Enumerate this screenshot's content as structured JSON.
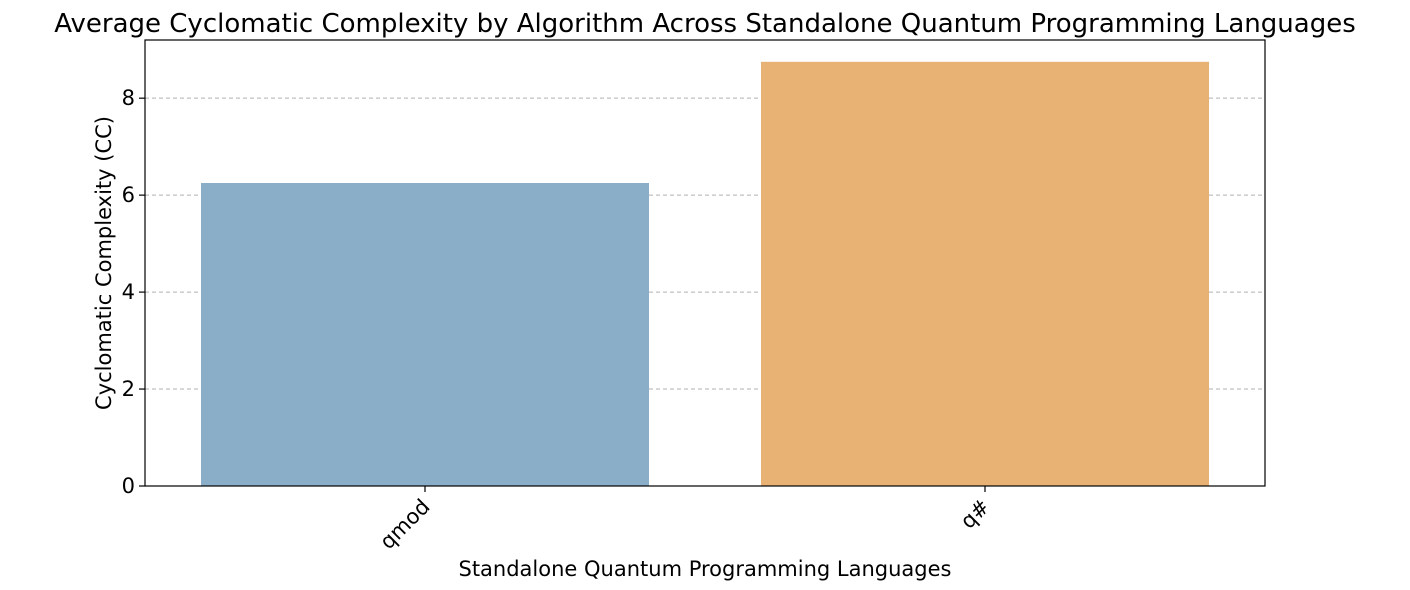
{
  "chart_data": {
    "type": "bar",
    "title": "Average Cyclomatic Complexity by Algorithm Across Standalone Quantum Programming Languages",
    "xlabel": "Standalone Quantum Programming Languages",
    "ylabel": "Cyclomatic Complexity (CC)",
    "categories": [
      "qmod",
      "q#"
    ],
    "values": [
      6.25,
      8.75
    ],
    "colors": [
      "#8aaec8",
      "#e9b275"
    ],
    "ylim": [
      0,
      9.2
    ],
    "yticks": [
      0,
      2,
      4,
      6,
      8
    ],
    "ytick_labels": [
      "0",
      "2",
      "4",
      "6",
      "8"
    ],
    "grid": "y-dashed",
    "xtick_rotation": 45
  }
}
